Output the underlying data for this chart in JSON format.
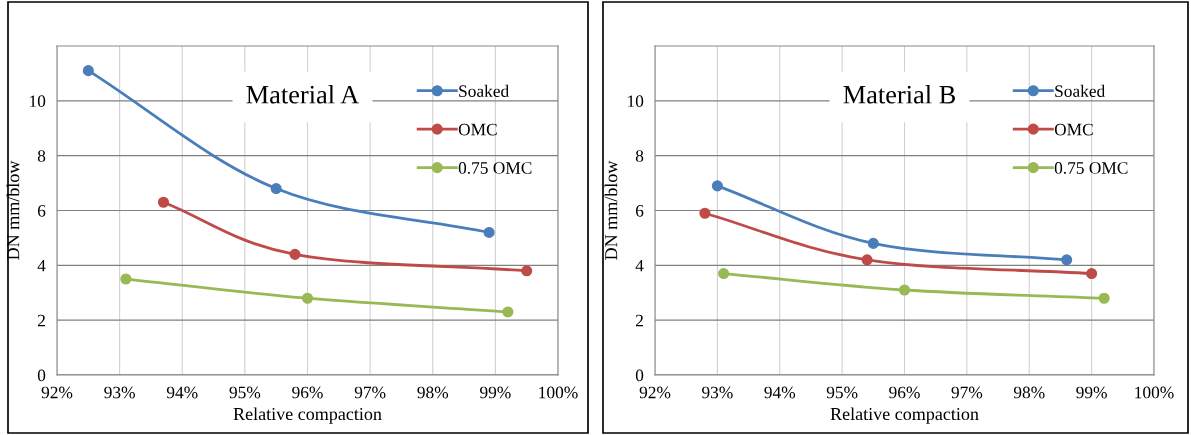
{
  "chart_data": [
    {
      "type": "line",
      "title": "Material A",
      "xlabel": "Relative compaction",
      "ylabel": "DN mm/blow",
      "marker": "circle",
      "grid": true,
      "legend": "top right",
      "xlim": [
        92,
        100
      ],
      "xticks": [
        {
          "value": 92,
          "label": "92%"
        },
        {
          "value": 93,
          "label": "93%"
        },
        {
          "value": 94,
          "label": "94%"
        },
        {
          "value": 95,
          "label": "95%"
        },
        {
          "value": 96,
          "label": "96%"
        },
        {
          "value": 97,
          "label": "97%"
        },
        {
          "value": 98,
          "label": "98%"
        },
        {
          "value": 99,
          "label": "99%"
        },
        {
          "value": 100,
          "label": "100%"
        }
      ],
      "ylim": [
        0,
        12
      ],
      "yticks": [
        0,
        2,
        4,
        6,
        8,
        10
      ],
      "series": [
        {
          "name": "Soaked",
          "color": "#4a7ebb",
          "x": [
            92.5,
            95.5,
            98.9
          ],
          "values": [
            11.1,
            6.8,
            5.2
          ]
        },
        {
          "name": "OMC",
          "color": "#be4b48",
          "x": [
            93.7,
            95.8,
            99.5
          ],
          "values": [
            6.3,
            4.4,
            3.8
          ]
        },
        {
          "name": "0.75 OMC",
          "color": "#98b954",
          "x": [
            93.1,
            96.0,
            99.2
          ],
          "values": [
            3.5,
            2.8,
            2.3
          ]
        }
      ]
    },
    {
      "type": "line",
      "title": "Material B",
      "xlabel": "Relative compaction",
      "ylabel": "DN mm/blow",
      "marker": "circle",
      "grid": true,
      "legend": "top right",
      "xlim": [
        92,
        100
      ],
      "xticks": [
        {
          "value": 92,
          "label": "92%"
        },
        {
          "value": 93,
          "label": "93%"
        },
        {
          "value": 94,
          "label": "94%"
        },
        {
          "value": 95,
          "label": "95%"
        },
        {
          "value": 96,
          "label": "96%"
        },
        {
          "value": 97,
          "label": "97%"
        },
        {
          "value": 98,
          "label": "98%"
        },
        {
          "value": 99,
          "label": "99%"
        },
        {
          "value": 100,
          "label": "100%"
        }
      ],
      "ylim": [
        0,
        12
      ],
      "yticks": [
        0,
        2,
        4,
        6,
        8,
        10
      ],
      "series": [
        {
          "name": "Soaked",
          "color": "#4a7ebb",
          "x": [
            93.0,
            95.5,
            98.6
          ],
          "values": [
            6.9,
            4.8,
            4.2
          ]
        },
        {
          "name": "OMC",
          "color": "#be4b48",
          "x": [
            92.8,
            95.4,
            99.0
          ],
          "values": [
            5.9,
            4.2,
            3.7
          ]
        },
        {
          "name": "0.75 OMC",
          "color": "#98b954",
          "x": [
            93.1,
            96.0,
            99.2
          ],
          "values": [
            3.7,
            3.1,
            2.8
          ]
        }
      ]
    }
  ]
}
